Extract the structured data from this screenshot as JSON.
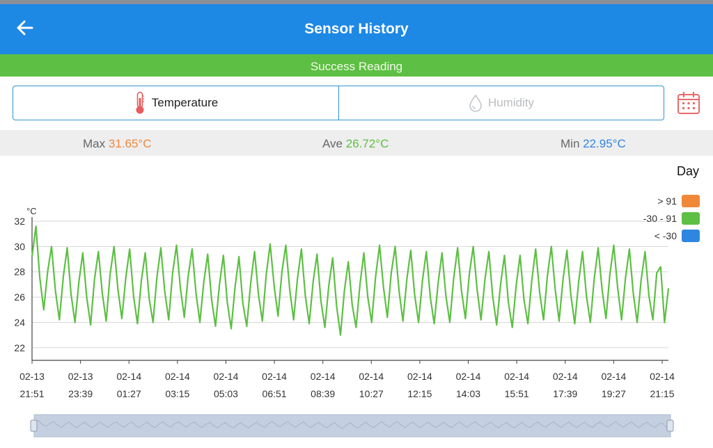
{
  "header": {
    "title": "Sensor History"
  },
  "banner": {
    "text": "Success Reading"
  },
  "tabs": [
    {
      "label": "Temperature",
      "active": true
    },
    {
      "label": "Humidity",
      "active": false
    }
  ],
  "stats": {
    "max_label": "Max",
    "max_value": "31.65°C",
    "ave_label": "Ave",
    "ave_value": "26.72°C",
    "min_label": "Min",
    "min_value": "22.95°C"
  },
  "colors": {
    "primary": "#1e88e5",
    "success": "#5dbf43",
    "max": "#f0883a",
    "ave": "#5dbf43",
    "min": "#2f86e0",
    "line": "#5dbf43"
  },
  "icons": [
    "back-arrow-icon",
    "thermometer-icon",
    "droplet-icon",
    "calendar-icon"
  ],
  "chart_data": {
    "type": "line",
    "period": "Day",
    "ylabel": "°C",
    "ylim": [
      21,
      32
    ],
    "yticks": [
      22,
      24,
      26,
      28,
      30,
      32
    ],
    "grid": true,
    "xticks": [
      {
        "date": "02-13",
        "time": "21:51"
      },
      {
        "date": "02-13",
        "time": "23:39"
      },
      {
        "date": "02-14",
        "time": "01:27"
      },
      {
        "date": "02-14",
        "time": "03:15"
      },
      {
        "date": "02-14",
        "time": "05:03"
      },
      {
        "date": "02-14",
        "time": "06:51"
      },
      {
        "date": "02-14",
        "time": "08:39"
      },
      {
        "date": "02-14",
        "time": "10:27"
      },
      {
        "date": "02-14",
        "time": "12:15"
      },
      {
        "date": "02-14",
        "time": "14:03"
      },
      {
        "date": "02-14",
        "time": "15:51"
      },
      {
        "date": "02-14",
        "time": "17:39"
      },
      {
        "date": "02-14",
        "time": "19:27"
      },
      {
        "date": "02-14",
        "time": "21:15"
      }
    ],
    "legend_position": "top-right",
    "legend": [
      {
        "label": "> 91",
        "color": "#f0883a"
      },
      {
        "label": "-30 - 91",
        "color": "#5dbf43"
      },
      {
        "label": "< -30",
        "color": "#2f86e0"
      }
    ],
    "series": [
      {
        "values": [
          29.2,
          31.6,
          27.5,
          25.0,
          28.0,
          30.0,
          26.5,
          24.2,
          27.6,
          29.9,
          26.2,
          24.0,
          27.2,
          29.5,
          26.0,
          23.8,
          27.4,
          29.6,
          26.3,
          24.1,
          27.8,
          30.0,
          26.6,
          24.3,
          27.5,
          29.8,
          26.1,
          23.9,
          27.3,
          29.5,
          25.9,
          24.0,
          27.6,
          29.9,
          26.4,
          24.2,
          27.9,
          30.1,
          26.7,
          24.4,
          27.7,
          29.8,
          26.3,
          24.0,
          27.2,
          29.4,
          25.8,
          23.7,
          27.0,
          29.3,
          25.6,
          23.5,
          26.8,
          29.2,
          25.5,
          23.7,
          27.1,
          29.6,
          26.2,
          24.1,
          27.8,
          30.2,
          26.9,
          24.5,
          28.0,
          30.1,
          26.6,
          24.2,
          27.5,
          29.8,
          26.1,
          23.9,
          27.2,
          29.4,
          25.7,
          23.6,
          26.9,
          29.1,
          25.3,
          23.0,
          26.5,
          28.8,
          25.4,
          23.6,
          27.0,
          29.5,
          26.0,
          24.0,
          27.6,
          30.1,
          26.8,
          24.4,
          27.9,
          30.0,
          26.5,
          24.1,
          27.4,
          29.7,
          26.2,
          24.0,
          27.3,
          29.6,
          26.0,
          23.9,
          27.1,
          29.5,
          26.1,
          24.0,
          27.5,
          29.9,
          26.5,
          24.3,
          27.8,
          30.0,
          26.6,
          24.2,
          27.4,
          29.6,
          26.0,
          23.8,
          27.0,
          29.3,
          25.6,
          23.6,
          26.9,
          29.3,
          25.8,
          23.9,
          27.3,
          29.8,
          26.4,
          24.2,
          27.7,
          30.0,
          26.6,
          24.1,
          27.4,
          29.7,
          26.2,
          23.9,
          27.2,
          29.6,
          26.1,
          24.0,
          27.5,
          29.9,
          26.6,
          24.3,
          27.8,
          30.1,
          26.7,
          24.2,
          27.5,
          29.8,
          26.3,
          24.0,
          27.3,
          29.6,
          26.1,
          24.2,
          27.9,
          28.4,
          24.0,
          26.7
        ]
      }
    ]
  }
}
